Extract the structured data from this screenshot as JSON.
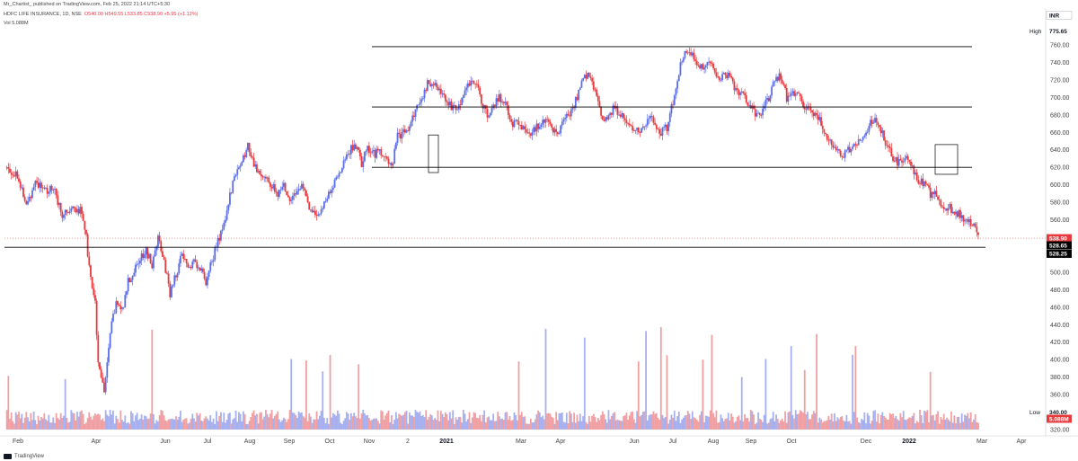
{
  "header": {
    "publisher": "Mr_Chartist_ published on TradingView.com, Feb 25, 2022 21:14 UTC+5:30",
    "symbol_prefix": "HDFC LIFE INSURANCE, 1D, NSE",
    "ohlc": "O540.00 H549.55 L533.85 C538.90 +5.95 (+1.12%)",
    "volume_label": "Vol",
    "volume_value": "5.088M"
  },
  "right_panel": {
    "currency": "INR",
    "high_label": "High",
    "high_value": "775.65",
    "low_label": "Low",
    "low_value": "340.00",
    "last_price": "538.90",
    "level_1": "528.65",
    "level_2": "528.25",
    "volume_tag": "5.088M"
  },
  "footer": {
    "brand": "TradingView"
  },
  "colors": {
    "up": "#5b6ee8",
    "down": "#e8393d",
    "vol_up": "#a7b0ef",
    "vol_down": "#f0a0a3",
    "line": "#000000",
    "last_tag": "#e8393d",
    "dark_tag": "#000000"
  },
  "chart_data": {
    "type": "candlestick",
    "title": "HDFC LIFE INSURANCE, 1D, NSE",
    "y_axis": {
      "ticks": [
        320,
        340,
        360,
        380,
        400,
        420,
        440,
        460,
        480,
        500,
        520,
        540,
        560,
        580,
        600,
        620,
        640,
        660,
        680,
        700,
        720,
        740,
        760
      ],
      "range": [
        313,
        782
      ]
    },
    "x_axis": {
      "labels": [
        "Feb",
        "Apr",
        "Jun",
        "Jul",
        "Aug",
        "Sep",
        "Oct",
        "Nov",
        "2",
        "2021",
        "Mar",
        "Apr",
        "Jun",
        "Jul",
        "Aug",
        "Sep",
        "Oct",
        "Dec",
        "2022",
        "Mar",
        "Apr"
      ],
      "bold_labels": [
        "2021",
        "2022"
      ]
    },
    "horizontal_levels": [
      {
        "price": 758,
        "from": "Nov",
        "to": "Mar"
      },
      {
        "price": 689,
        "from": "Nov",
        "to": "Mar"
      },
      {
        "price": 620,
        "from": "Nov",
        "to": "Mar"
      },
      {
        "price": 528.5,
        "from": "Feb",
        "to": "Mar"
      }
    ],
    "highlight_boxes": [
      {
        "from": "2",
        "price_top": 657,
        "price_bottom": 614
      },
      {
        "from": "2022",
        "price_top": 646,
        "price_bottom": 612
      }
    ],
    "price_path": [
      [
        0,
        620
      ],
      [
        8,
        612
      ],
      [
        14,
        575
      ],
      [
        20,
        605
      ],
      [
        26,
        592
      ],
      [
        32,
        596
      ],
      [
        38,
        567
      ],
      [
        44,
        575
      ],
      [
        50,
        570
      ],
      [
        54,
        540
      ],
      [
        56,
        505
      ],
      [
        60,
        463
      ],
      [
        62,
        400
      ],
      [
        66,
        360
      ],
      [
        70,
        430
      ],
      [
        74,
        465
      ],
      [
        78,
        455
      ],
      [
        82,
        490
      ],
      [
        86,
        500
      ],
      [
        90,
        515
      ],
      [
        94,
        525
      ],
      [
        98,
        508
      ],
      [
        102,
        538
      ],
      [
        106,
        512
      ],
      [
        110,
        476
      ],
      [
        114,
        498
      ],
      [
        118,
        520
      ],
      [
        122,
        505
      ],
      [
        126,
        512
      ],
      [
        130,
        505
      ],
      [
        134,
        490
      ],
      [
        138,
        513
      ],
      [
        142,
        535
      ],
      [
        146,
        555
      ],
      [
        150,
        590
      ],
      [
        154,
        611
      ],
      [
        158,
        624
      ],
      [
        162,
        646
      ],
      [
        166,
        625
      ],
      [
        170,
        610
      ],
      [
        174,
        608
      ],
      [
        178,
        598
      ],
      [
        182,
        590
      ],
      [
        186,
        600
      ],
      [
        190,
        585
      ],
      [
        194,
        590
      ],
      [
        198,
        600
      ],
      [
        202,
        577
      ],
      [
        206,
        566
      ],
      [
        210,
        565
      ],
      [
        214,
        581
      ],
      [
        218,
        596
      ],
      [
        222,
        610
      ],
      [
        226,
        625
      ],
      [
        230,
        640
      ],
      [
        234,
        645
      ],
      [
        238,
        625
      ],
      [
        242,
        644
      ],
      [
        246,
        635
      ],
      [
        250,
        638
      ],
      [
        254,
        630
      ],
      [
        258,
        620
      ],
      [
        262,
        655
      ],
      [
        266,
        660
      ],
      [
        270,
        665
      ],
      [
        274,
        687
      ],
      [
        278,
        700
      ],
      [
        282,
        715
      ],
      [
        286,
        718
      ],
      [
        290,
        705
      ],
      [
        294,
        700
      ],
      [
        298,
        688
      ],
      [
        302,
        684
      ],
      [
        306,
        706
      ],
      [
        310,
        715
      ],
      [
        314,
        720
      ],
      [
        318,
        695
      ],
      [
        322,
        681
      ],
      [
        326,
        690
      ],
      [
        330,
        700
      ],
      [
        334,
        692
      ],
      [
        338,
        668
      ],
      [
        342,
        671
      ],
      [
        346,
        665
      ],
      [
        350,
        660
      ],
      [
        354,
        665
      ],
      [
        358,
        670
      ],
      [
        362,
        675
      ],
      [
        366,
        660
      ],
      [
        370,
        662
      ],
      [
        374,
        678
      ],
      [
        378,
        685
      ],
      [
        382,
        700
      ],
      [
        386,
        720
      ],
      [
        390,
        726
      ],
      [
        394,
        707
      ],
      [
        398,
        677
      ],
      [
        402,
        675
      ],
      [
        406,
        688
      ],
      [
        410,
        682
      ],
      [
        414,
        677
      ],
      [
        418,
        664
      ],
      [
        422,
        662
      ],
      [
        426,
        662
      ],
      [
        430,
        680
      ],
      [
        434,
        669
      ],
      [
        438,
        660
      ],
      [
        442,
        665
      ],
      [
        446,
        695
      ],
      [
        450,
        730
      ],
      [
        454,
        755
      ],
      [
        458,
        750
      ],
      [
        462,
        740
      ],
      [
        466,
        735
      ],
      [
        470,
        740
      ],
      [
        474,
        730
      ],
      [
        478,
        722
      ],
      [
        482,
        726
      ],
      [
        486,
        715
      ],
      [
        490,
        705
      ],
      [
        494,
        700
      ],
      [
        498,
        690
      ],
      [
        502,
        680
      ],
      [
        506,
        685
      ],
      [
        510,
        700
      ],
      [
        514,
        720
      ],
      [
        518,
        725
      ],
      [
        522,
        700
      ],
      [
        526,
        705
      ],
      [
        530,
        705
      ],
      [
        534,
        690
      ],
      [
        538,
        685
      ],
      [
        542,
        682
      ],
      [
        546,
        665
      ],
      [
        550,
        650
      ],
      [
        554,
        640
      ],
      [
        558,
        633
      ],
      [
        562,
        637
      ],
      [
        566,
        643
      ],
      [
        570,
        650
      ],
      [
        574,
        660
      ],
      [
        578,
        670
      ],
      [
        582,
        676
      ],
      [
        586,
        660
      ],
      [
        590,
        640
      ],
      [
        594,
        628
      ],
      [
        598,
        624
      ],
      [
        602,
        637
      ],
      [
        606,
        620
      ],
      [
        610,
        605
      ],
      [
        614,
        600
      ],
      [
        618,
        590
      ],
      [
        622,
        588
      ],
      [
        626,
        572
      ],
      [
        630,
        575
      ],
      [
        634,
        570
      ],
      [
        638,
        565
      ],
      [
        642,
        560
      ],
      [
        646,
        555
      ],
      [
        650,
        540
      ]
    ],
    "volume_series": [
      {
        "name": "",
        "peak_values_M": [
          26,
          27,
          24,
          22,
          21,
          22
        ]
      }
    ]
  }
}
